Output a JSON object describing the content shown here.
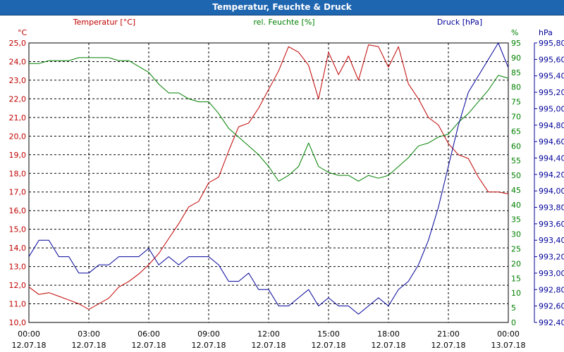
{
  "window": {
    "title": "Temperatur, Feuchte & Druck"
  },
  "colors": {
    "temperature": "#c00000",
    "humidity": "#008000",
    "pressure": "#000099",
    "grid": "#000000"
  },
  "chart_data": {
    "type": "line",
    "title": "Temperatur, Feuchte & Druck",
    "x": [
      0,
      0.5,
      1,
      1.5,
      2,
      2.5,
      3,
      3.5,
      4,
      4.5,
      5,
      5.5,
      6,
      6.5,
      7,
      7.5,
      8,
      8.5,
      9,
      9.5,
      10,
      10.5,
      11,
      11.5,
      12,
      12.5,
      13,
      13.5,
      14,
      14.5,
      15,
      15.5,
      16,
      16.5,
      17,
      17.5,
      18,
      18.5,
      19,
      19.5,
      20,
      20.5,
      21,
      21.5,
      22,
      22.5,
      23,
      23.5,
      24
    ],
    "xticks": [
      {
        "time": "00:00",
        "date": "12.07.18"
      },
      {
        "time": "03:00",
        "date": "12.07.18"
      },
      {
        "time": "06:00",
        "date": "12.07.18"
      },
      {
        "time": "09:00",
        "date": "12.07.18"
      },
      {
        "time": "12:00",
        "date": "12.07.18"
      },
      {
        "time": "15:00",
        "date": "12.07.18"
      },
      {
        "time": "18:00",
        "date": "12.07.18"
      },
      {
        "time": "21:00",
        "date": "12.07.18"
      },
      {
        "time": "00:00",
        "date": "13.07.18"
      }
    ],
    "xlim": [
      0,
      24
    ],
    "grid": true,
    "axes": {
      "left": {
        "unit": "°C",
        "range": [
          10,
          25
        ],
        "ticks": [
          "10,0",
          "11,0",
          "12,0",
          "13,0",
          "14,0",
          "15,0",
          "16,0",
          "17,0",
          "18,0",
          "19,0",
          "20,0",
          "21,0",
          "22,0",
          "23,0",
          "24,0",
          "25,0"
        ]
      },
      "middle": {
        "unit": "%",
        "range": [
          0,
          95
        ],
        "ticks": [
          "0",
          "5",
          "10",
          "15",
          "20",
          "25",
          "30",
          "35",
          "40",
          "45",
          "50",
          "55",
          "60",
          "65",
          "70",
          "75",
          "80",
          "85",
          "90",
          "95"
        ]
      },
      "right": {
        "unit": "hPa",
        "range": [
          992.4,
          995.8
        ],
        "ticks": [
          "992,40",
          "992,60",
          "992,80",
          "993,00",
          "993,20",
          "993,40",
          "993,60",
          "993,80",
          "994,00",
          "994,20",
          "994,40",
          "994,60",
          "994,80",
          "995,00",
          "995,20",
          "995,40",
          "995,60",
          "995,80"
        ]
      }
    },
    "series": [
      {
        "name": "Temperatur [°C]",
        "axis": "left",
        "values": [
          11.9,
          11.5,
          11.6,
          11.4,
          11.2,
          11.0,
          10.7,
          11.0,
          11.3,
          11.9,
          12.2,
          12.6,
          13.1,
          13.7,
          14.5,
          15.3,
          16.2,
          16.5,
          17.5,
          17.8,
          19.2,
          20.5,
          20.7,
          21.5,
          22.5,
          23.5,
          24.8,
          24.5,
          23.8,
          22.0,
          24.5,
          23.3,
          24.3,
          23.0,
          24.9,
          24.8,
          23.7,
          24.8,
          22.8,
          22.0,
          21.0,
          20.6,
          19.6,
          19.0,
          18.8,
          17.8,
          17.0,
          17.0,
          16.9
        ]
      },
      {
        "name": "rel. Feuchte [%]",
        "axis": "middle",
        "values": [
          88,
          88,
          89,
          89,
          89,
          90,
          90,
          90,
          90,
          89,
          89,
          87,
          85,
          81,
          78,
          78,
          76,
          75,
          75,
          71,
          66,
          63,
          60,
          57,
          53,
          48,
          50,
          53,
          61,
          53,
          51,
          50,
          50,
          48,
          50,
          49,
          50,
          53,
          56,
          60,
          61,
          63,
          64,
          68,
          71,
          75,
          79,
          84,
          83
        ]
      },
      {
        "name": "Druck [hPa]",
        "axis": "right",
        "values": [
          993.2,
          993.4,
          993.4,
          993.2,
          993.2,
          993.0,
          993.0,
          993.1,
          993.1,
          993.2,
          993.2,
          993.2,
          993.3,
          993.1,
          993.2,
          993.1,
          993.2,
          993.2,
          993.2,
          993.1,
          992.9,
          992.9,
          993.0,
          992.8,
          992.8,
          992.6,
          992.6,
          992.7,
          992.8,
          992.6,
          992.7,
          992.6,
          992.6,
          992.5,
          992.6,
          992.7,
          992.6,
          992.8,
          992.9,
          993.1,
          993.4,
          993.8,
          994.3,
          994.8,
          995.2,
          995.4,
          995.6,
          995.8,
          995.5
        ]
      }
    ]
  }
}
